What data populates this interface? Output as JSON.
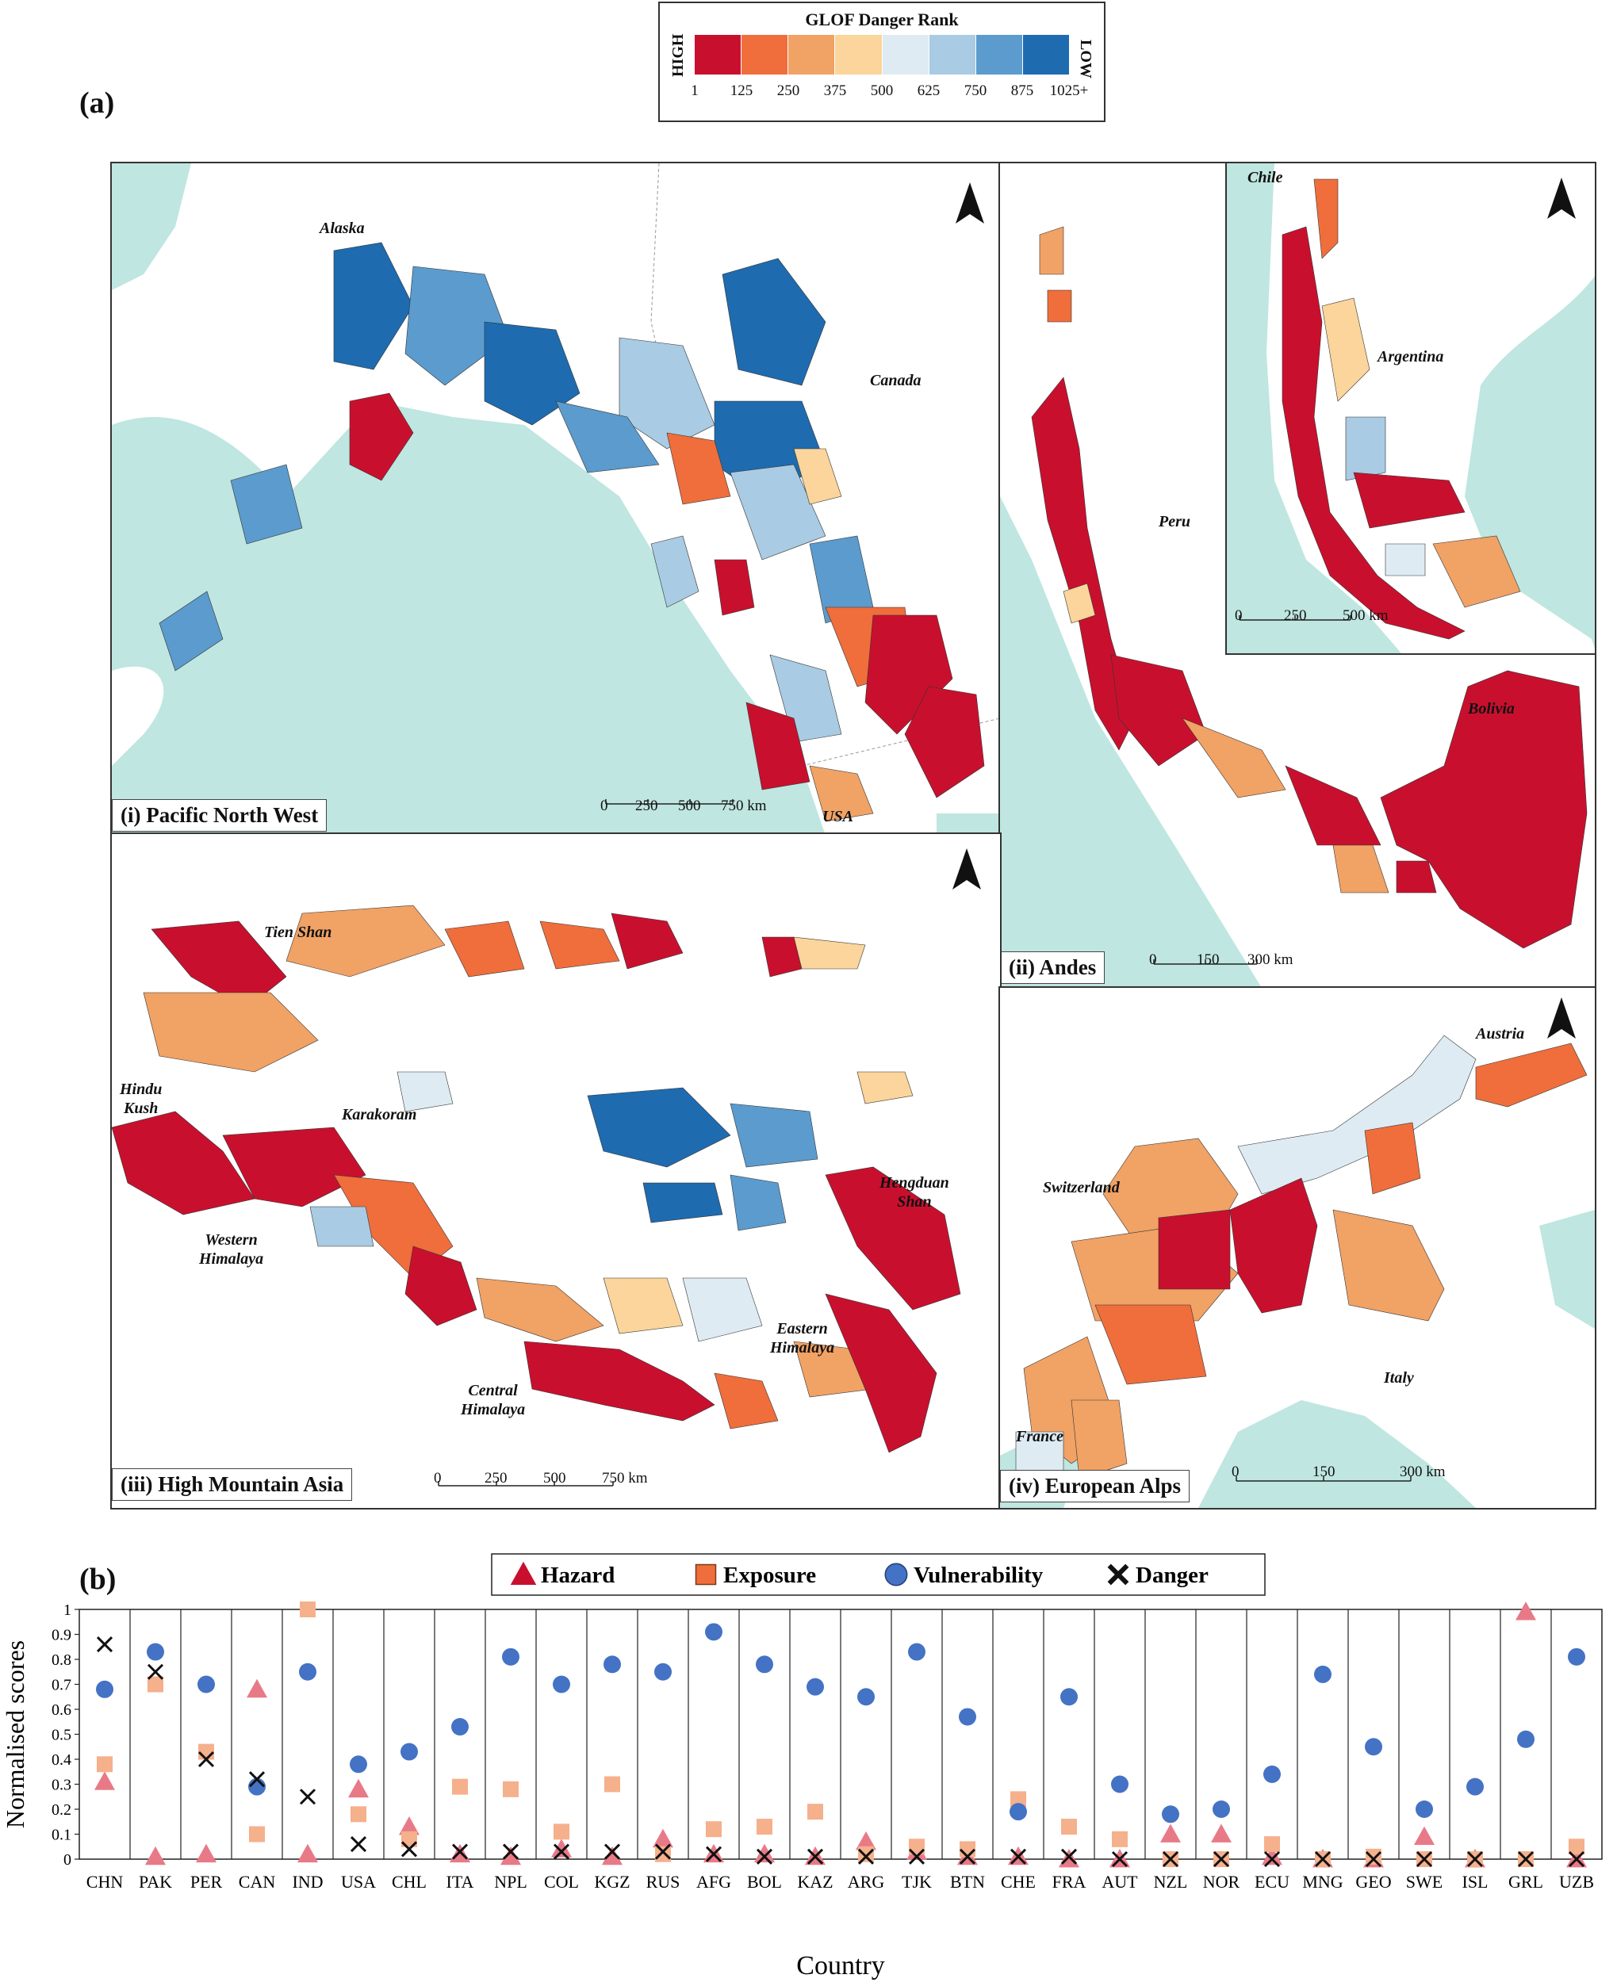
{
  "figure": {
    "panel_a_label": "(a)",
    "panel_b_label": "(b)"
  },
  "map_legend": {
    "title": "GLOF Danger Rank",
    "high_label": "HIGH",
    "low_label": "LOW",
    "colors": [
      "#c8102e",
      "#ef6e3c",
      "#f1a265",
      "#fbd59b",
      "#deebf3",
      "#a9cbe3",
      "#5b9bcd",
      "#1e6bb0"
    ],
    "ticks": [
      "1",
      "125",
      "250",
      "375",
      "500",
      "625",
      "750",
      "875",
      "1025+"
    ]
  },
  "maps": [
    {
      "id": "pnw",
      "caption": "(i) Pacific North West",
      "labels": [
        "Alaska",
        "Canada",
        "USA"
      ],
      "scale": [
        "0",
        "250",
        "500",
        "750 km"
      ]
    },
    {
      "id": "andes",
      "caption": "(ii) Andes",
      "labels": [
        "Peru",
        "Bolivia",
        "Chile",
        "Argentina"
      ],
      "scale": [
        "0",
        "150",
        "300 km"
      ],
      "inset_scale": [
        "0",
        "250",
        "500 km"
      ]
    },
    {
      "id": "hma",
      "caption": "(iii) High Mountain Asia",
      "labels": [
        "Tien Shan",
        "Hindu\nKush",
        "Karakoram",
        "Western\nHimalaya",
        "Central\nHimalaya",
        "Eastern\nHimalaya",
        "Hengduan\nShan"
      ],
      "scale": [
        "0",
        "250",
        "500",
        "750 km"
      ]
    },
    {
      "id": "alps",
      "caption": "(iv) European Alps",
      "labels": [
        "Austria",
        "Switzerland",
        "Italy",
        "France"
      ],
      "scale": [
        "0",
        "150",
        "300 km"
      ]
    }
  ],
  "chart_data": {
    "type": "scatter",
    "xlabel": "Country",
    "ylabel": "Normalised scores",
    "ylim": [
      0,
      1
    ],
    "yticks": [
      "0",
      "0.1",
      "0.2",
      "0.3",
      "0.4",
      "0.5",
      "0.6",
      "0.7",
      "0.8",
      "0.9",
      "1"
    ],
    "legend_position": "top",
    "categories": [
      "CHN",
      "PAK",
      "PER",
      "CAN",
      "IND",
      "USA",
      "CHL",
      "ITA",
      "NPL",
      "COL",
      "KGZ",
      "RUS",
      "AFG",
      "BOL",
      "KAZ",
      "ARG",
      "TJK",
      "BTN",
      "CHE",
      "FRA",
      "AUT",
      "NZL",
      "NOR",
      "ECU",
      "MNG",
      "GEO",
      "SWE",
      "ISL",
      "GRL",
      "UZB"
    ],
    "series": [
      {
        "name": "Hazard",
        "marker": "triangle",
        "color": "#e87a87",
        "values": [
          0.31,
          0.01,
          0.02,
          0.68,
          0.02,
          0.28,
          0.13,
          0.02,
          0.01,
          0.04,
          0.01,
          0.08,
          0.02,
          0.02,
          0.01,
          0.07,
          0.03,
          0.01,
          0.01,
          0.0,
          0.0,
          0.1,
          0.1,
          0.01,
          0.0,
          0.0,
          0.09,
          0.0,
          0.99,
          0.0
        ]
      },
      {
        "name": "Exposure",
        "marker": "square",
        "color": "#f5b08c",
        "values": [
          0.38,
          0.7,
          0.43,
          0.1,
          1.0,
          0.18,
          0.08,
          0.29,
          0.28,
          0.11,
          0.3,
          0.02,
          0.12,
          0.13,
          0.19,
          0.02,
          0.05,
          0.04,
          0.24,
          0.13,
          0.08,
          0.0,
          0.0,
          0.06,
          0.0,
          0.01,
          0.0,
          0.0,
          0.0,
          0.05
        ]
      },
      {
        "name": "Vulnerability",
        "marker": "circle",
        "color": "#4472c4",
        "values": [
          0.68,
          0.83,
          0.7,
          0.29,
          0.75,
          0.38,
          0.43,
          0.53,
          0.81,
          0.7,
          0.78,
          0.75,
          0.91,
          0.78,
          0.69,
          0.65,
          0.83,
          0.57,
          0.19,
          0.65,
          0.3,
          0.18,
          0.2,
          0.34,
          0.74,
          0.45,
          0.2,
          0.29,
          0.48,
          0.81
        ]
      },
      {
        "name": "Danger",
        "marker": "cross",
        "color": "#111111",
        "values": [
          0.86,
          0.75,
          0.4,
          0.32,
          0.25,
          0.06,
          0.04,
          0.03,
          0.03,
          0.03,
          0.03,
          0.03,
          0.02,
          0.01,
          0.01,
          0.01,
          0.01,
          0.01,
          0.01,
          0.01,
          0.0,
          0.0,
          0.0,
          0.0,
          0.0,
          0.0,
          0.0,
          0.0,
          0.0,
          0.0
        ]
      }
    ]
  }
}
